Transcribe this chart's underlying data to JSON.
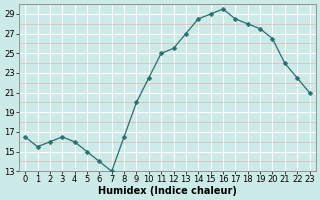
{
  "x": [
    0,
    1,
    2,
    3,
    4,
    5,
    6,
    7,
    8,
    9,
    10,
    11,
    12,
    13,
    14,
    15,
    16,
    17,
    18,
    19,
    20,
    21,
    22,
    23
  ],
  "y": [
    16.5,
    15.5,
    16.0,
    16.5,
    16.0,
    15.0,
    14.0,
    13.0,
    16.5,
    20.0,
    22.5,
    25.0,
    25.5,
    27.0,
    28.5,
    29.0,
    29.5,
    28.5,
    28.0,
    27.5,
    26.5,
    24.0,
    22.5,
    21.0
  ],
  "line_color": "#2d6e6e",
  "marker": "D",
  "marker_size": 2.5,
  "bg_color": "#cceae8",
  "grid_color_major": "#ffffff",
  "grid_color_minor": "#d9b8b8",
  "xlabel": "Humidex (Indice chaleur)",
  "xlabel_fontsize": 7,
  "ylim": [
    13,
    30
  ],
  "xlim": [
    -0.5,
    23.5
  ],
  "yticks": [
    13,
    15,
    17,
    19,
    21,
    23,
    25,
    27,
    29
  ],
  "xticks": [
    0,
    1,
    2,
    3,
    4,
    5,
    6,
    7,
    8,
    9,
    10,
    11,
    12,
    13,
    14,
    15,
    16,
    17,
    18,
    19,
    20,
    21,
    22,
    23
  ],
  "tick_fontsize": 6.0,
  "linewidth": 0.9
}
